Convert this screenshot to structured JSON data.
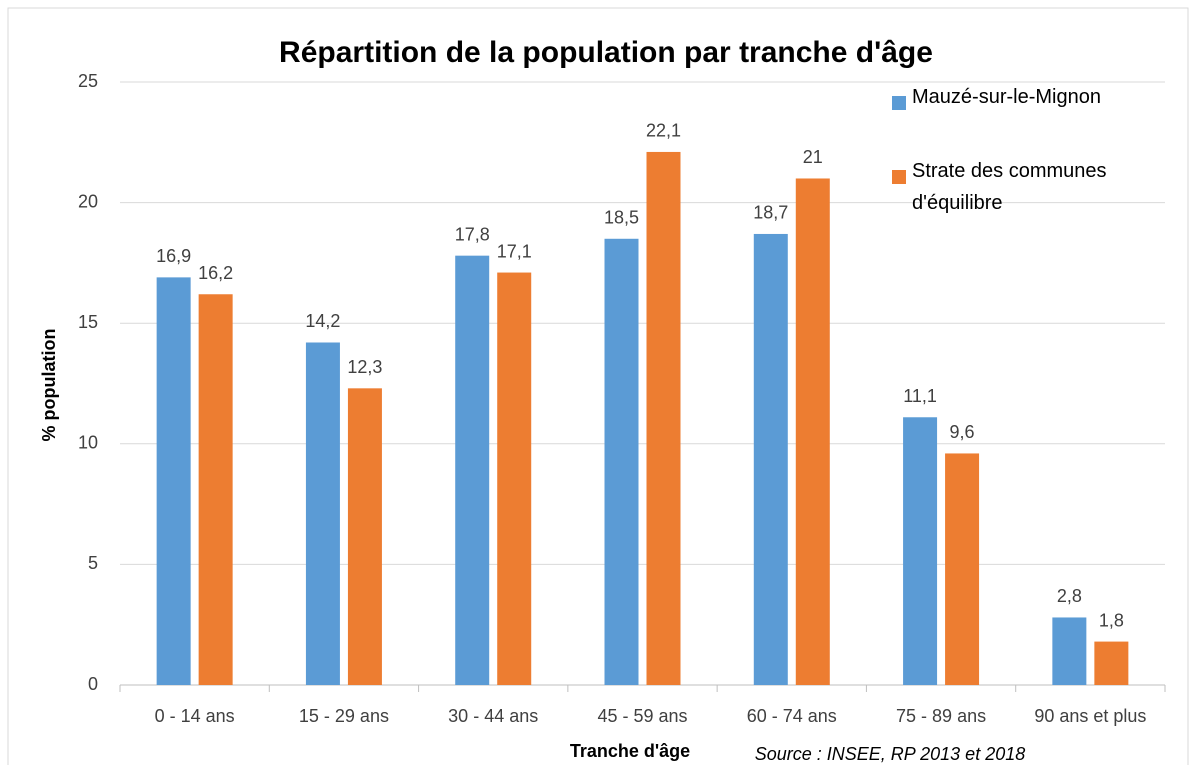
{
  "chart_data": {
    "type": "bar",
    "title": "Répartition de la population par tranche d'âge",
    "x_label": "Tranche d'âge",
    "y_label": "% population",
    "source": "Source : INSEE, RP 2013 et 2018",
    "categories": [
      "0 - 14 ans",
      "15 - 29 ans",
      "30 - 44 ans",
      "45 - 59 ans",
      "60 - 74 ans",
      "75 - 89 ans",
      "90 ans et plus"
    ],
    "series": [
      {
        "name": "Mauzé-sur-le-Mignon",
        "color": "#5b9bd5",
        "values": [
          16.9,
          14.2,
          17.8,
          18.5,
          18.7,
          11.1,
          2.8
        ],
        "value_labels": [
          "16,9",
          "14,2",
          "17,8",
          "18,5",
          "18,7",
          "11,1",
          "2,8"
        ]
      },
      {
        "name": "Strate des communes d'équilibre",
        "color": "#ed7d31",
        "values": [
          16.2,
          12.3,
          17.1,
          22.1,
          21,
          9.6,
          1.8
        ],
        "value_labels": [
          "16,2",
          "12,3",
          "17,1",
          "22,1",
          "21",
          "9,6",
          "1,8"
        ]
      }
    ],
    "ylim": [
      0,
      25
    ],
    "yticks": [
      0,
      5,
      10,
      15,
      20,
      25
    ],
    "grid": true,
    "legend": "top-right"
  }
}
